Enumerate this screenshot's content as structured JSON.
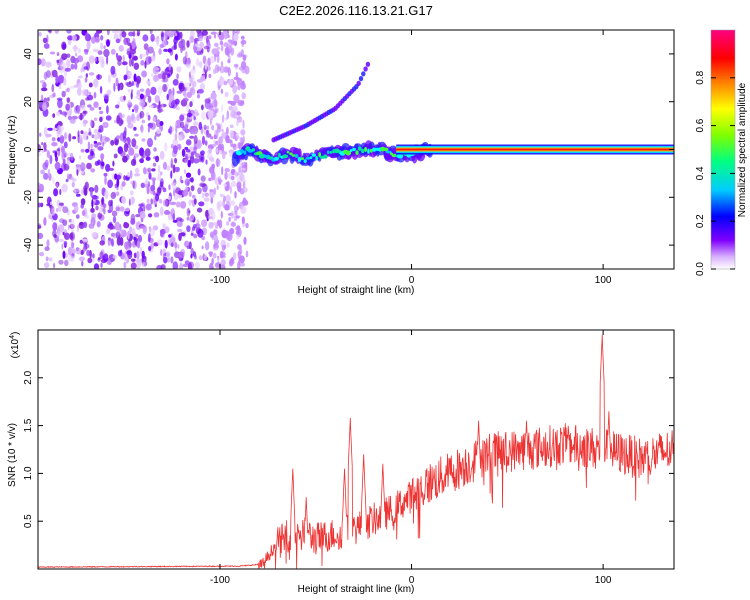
{
  "title": "C2E2.2026.116.13.21.G17",
  "chart_data": [
    {
      "type": "heatmap",
      "name": "spectrogram",
      "xlabel": "Height of straight line (km)",
      "ylabel": "Frequency (Hz)",
      "xlim": [
        -195,
        137
      ],
      "ylim": [
        -50,
        50
      ],
      "xticks": [
        -100,
        0,
        100
      ],
      "yticks": [
        -40,
        -20,
        0,
        20,
        40
      ],
      "colorbar": {
        "label": "Normalized spectral amplitude",
        "range": [
          0,
          1
        ],
        "ticks": [
          "0.0",
          "0.2",
          "0.4",
          "0.6",
          "0.8"
        ],
        "tick_values": [
          0.0,
          0.2,
          0.4,
          0.6,
          0.8
        ],
        "colors": [
          "#ffffff",
          "#d9b3ff",
          "#8000ff",
          "#0000ff",
          "#00ccff",
          "#00ff80",
          "#80ff00",
          "#ffff00",
          "#ff8000",
          "#ff0000",
          "#ff0080"
        ]
      },
      "noise_region_x": [
        -195,
        -90
      ],
      "main_line": [
        {
          "x": -92,
          "y": -3
        },
        {
          "x": -85,
          "y": 0
        },
        {
          "x": -75,
          "y": -4
        },
        {
          "x": -65,
          "y": -2
        },
        {
          "x": -55,
          "y": -4
        },
        {
          "x": -45,
          "y": -2
        },
        {
          "x": -35,
          "y": -1
        },
        {
          "x": -25,
          "y": 0
        },
        {
          "x": -15,
          "y": 0
        },
        {
          "x": -8,
          "y": -2
        },
        {
          "x": 0,
          "y": -2
        },
        {
          "x": 8,
          "y": 0
        },
        {
          "x": 40,
          "y": 0
        },
        {
          "x": 80,
          "y": 0
        },
        {
          "x": 100,
          "y": 0
        },
        {
          "x": 137,
          "y": 0
        }
      ],
      "branch_line": [
        {
          "x": -72,
          "y": 4
        },
        {
          "x": -55,
          "y": 10
        },
        {
          "x": -40,
          "y": 17
        },
        {
          "x": -28,
          "y": 27
        },
        {
          "x": -22,
          "y": 37
        }
      ]
    },
    {
      "type": "line",
      "name": "snr",
      "xlabel": "Height of straight line (km)",
      "ylabel": "SNR (10 * v/v)",
      "y_multiplier_label": "(x10",
      "y_multiplier_exp": "4",
      "y_multiplier_close": ")",
      "xlim": [
        -195,
        137
      ],
      "ylim": [
        0,
        2.5
      ],
      "xticks": [
        -100,
        0,
        100
      ],
      "yticks": [
        "0.5",
        "1.0",
        "1.5",
        "2.0"
      ],
      "ytick_values": [
        0.5,
        1.0,
        1.5,
        2.0
      ],
      "series_color": "#ee3333",
      "envelope": [
        {
          "x": -195,
          "y": 0.02
        },
        {
          "x": -90,
          "y": 0.03
        },
        {
          "x": -78,
          "y": 0.05
        },
        {
          "x": -70,
          "y": 0.3
        },
        {
          "x": -60,
          "y": 0.45
        },
        {
          "x": -50,
          "y": 0.35
        },
        {
          "x": -40,
          "y": 0.4
        },
        {
          "x": -30,
          "y": 0.45
        },
        {
          "x": -20,
          "y": 0.55
        },
        {
          "x": -10,
          "y": 0.65
        },
        {
          "x": 0,
          "y": 0.8
        },
        {
          "x": 10,
          "y": 0.95
        },
        {
          "x": 20,
          "y": 1.05
        },
        {
          "x": 30,
          "y": 1.15
        },
        {
          "x": 40,
          "y": 1.25
        },
        {
          "x": 60,
          "y": 1.3
        },
        {
          "x": 80,
          "y": 1.35
        },
        {
          "x": 100,
          "y": 1.3
        },
        {
          "x": 120,
          "y": 1.2
        },
        {
          "x": 137,
          "y": 1.3
        }
      ],
      "peaks": [
        {
          "x": -62,
          "y": 1.05
        },
        {
          "x": -55,
          "y": 0.75
        },
        {
          "x": -35,
          "y": 1.05
        },
        {
          "x": -32,
          "y": 1.58
        },
        {
          "x": -25,
          "y": 1.2
        },
        {
          "x": -15,
          "y": 1.1
        },
        {
          "x": 35,
          "y": 1.55
        },
        {
          "x": 60,
          "y": 1.55
        },
        {
          "x": 82,
          "y": 1.45
        },
        {
          "x": 99.5,
          "y": 2.45
        },
        {
          "x": 103,
          "y": 1.65
        },
        {
          "x": 136,
          "y": 1.45
        }
      ]
    }
  ]
}
